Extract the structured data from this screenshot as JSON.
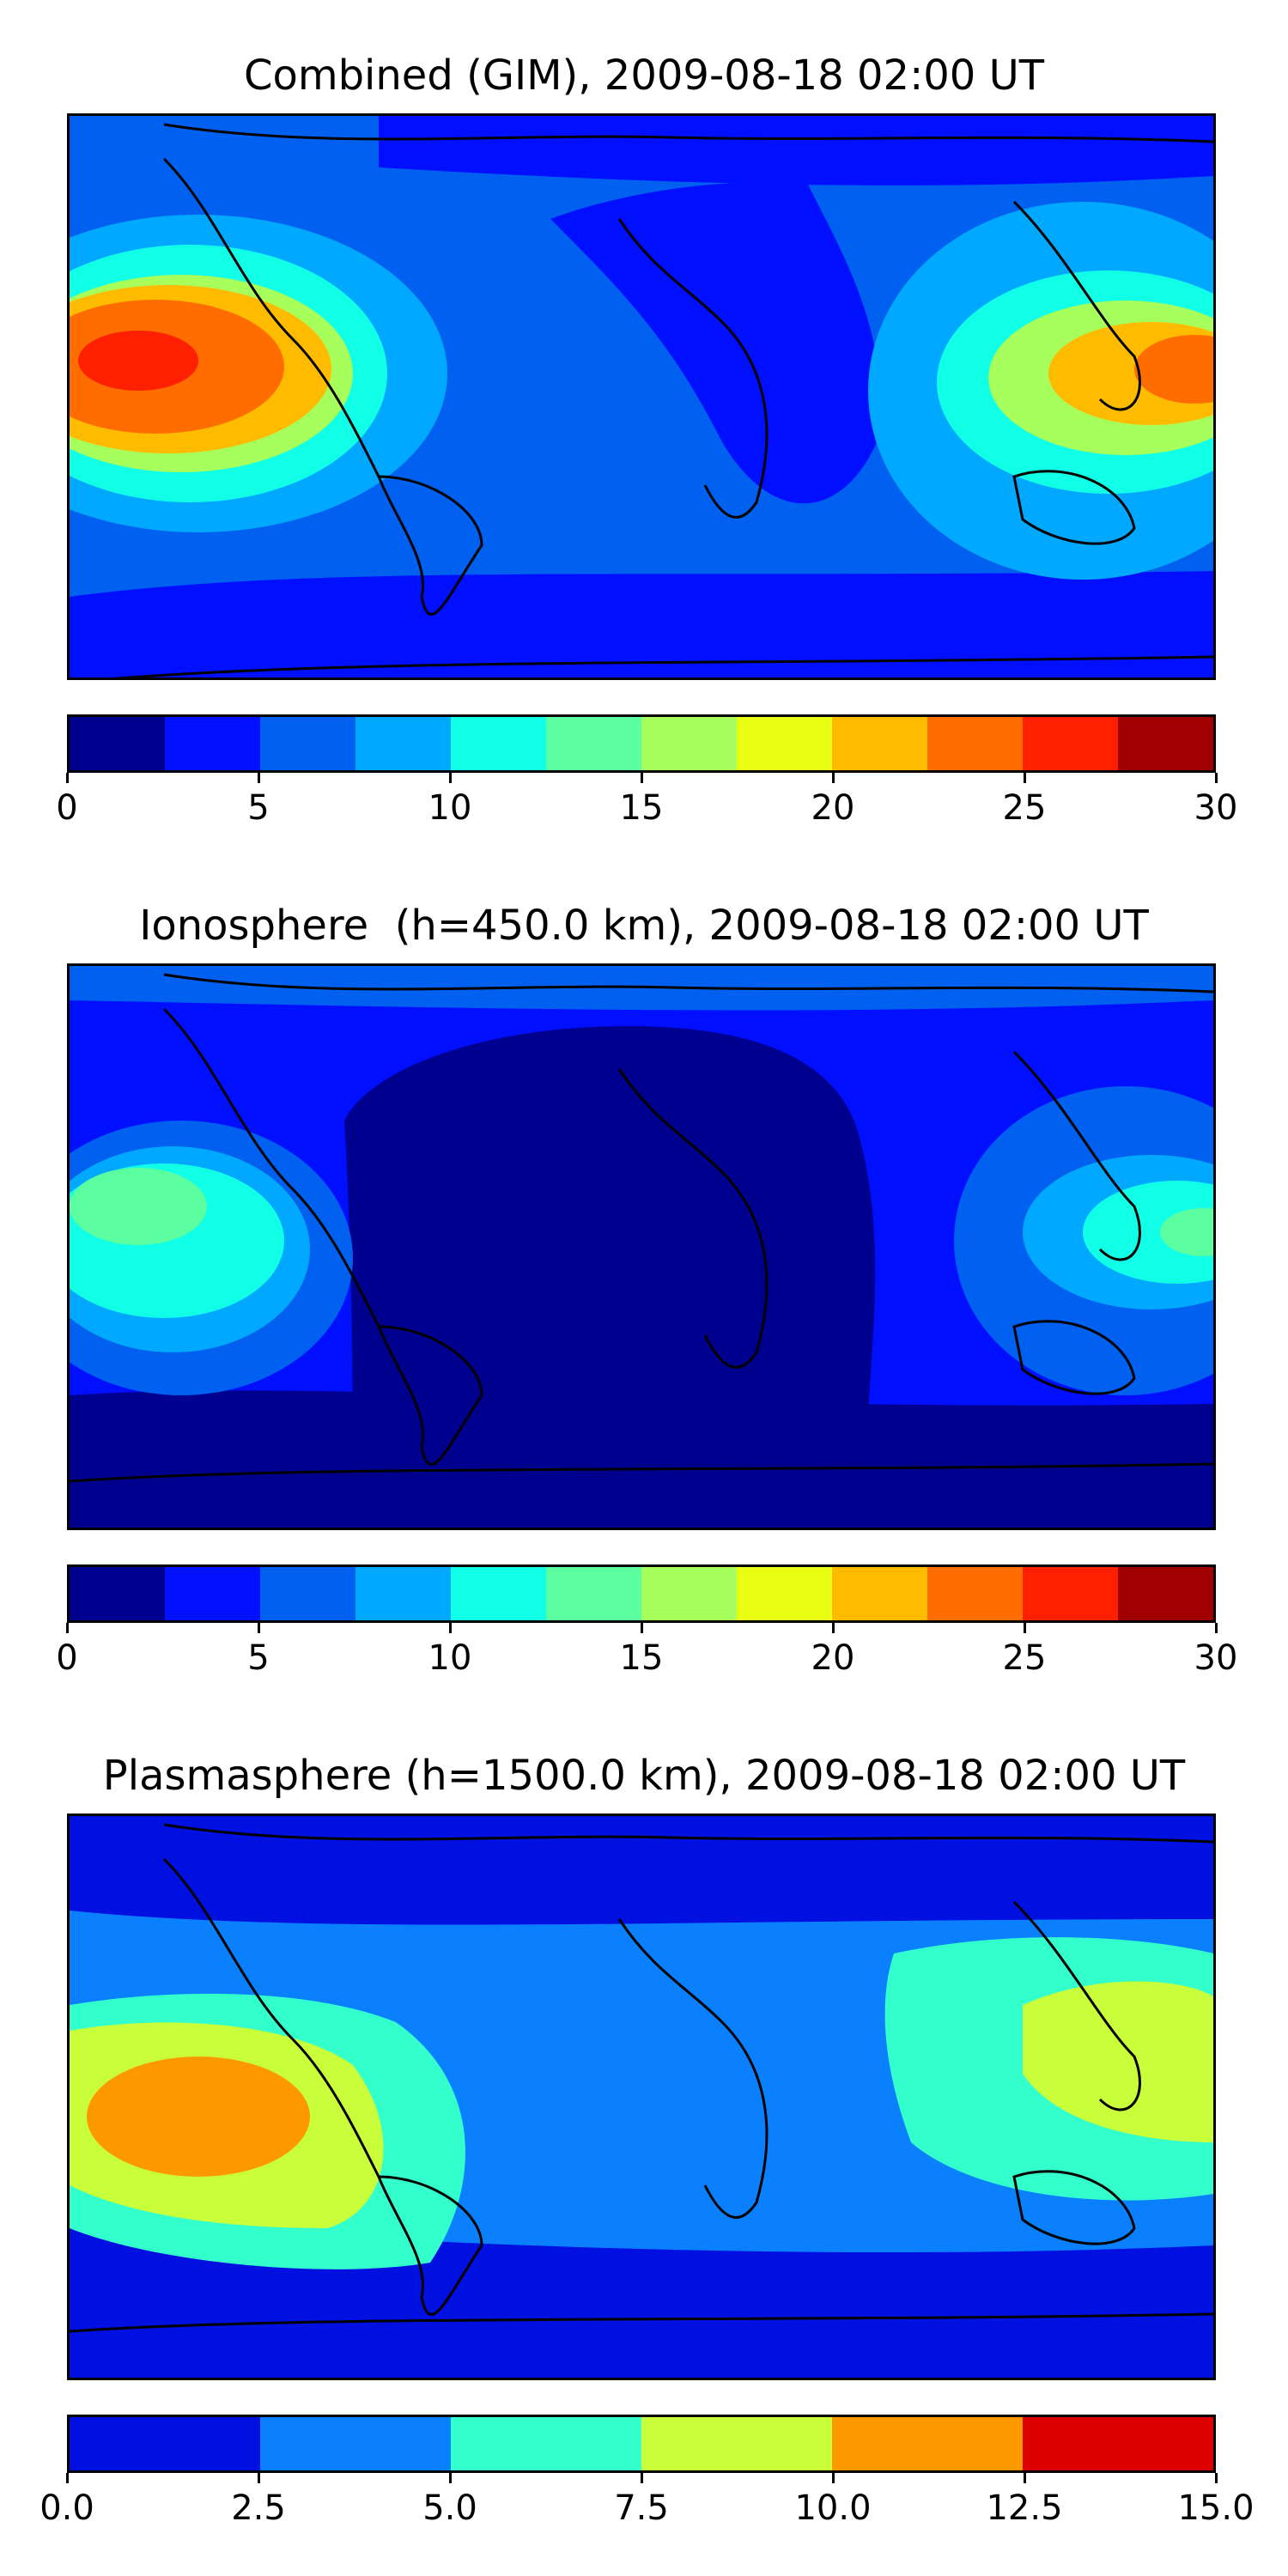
{
  "panels": [
    {
      "title": "Combined (GIM), 2009-08-18 02:00 UT",
      "colorbar": {
        "colors": [
          "#00008f",
          "#0010ff",
          "#0060f0",
          "#00a8ff",
          "#10ffe6",
          "#5cffa0",
          "#a6ff5a",
          "#e8ff14",
          "#ffbb00",
          "#ff6d00",
          "#ff2000",
          "#a00000"
        ],
        "ticks": [
          "0",
          "5",
          "10",
          "15",
          "20",
          "25",
          "30"
        ]
      }
    },
    {
      "title": "Ionosphere  (h=450.0 km), 2009-08-18 02:00 UT",
      "colorbar": {
        "colors": [
          "#00008f",
          "#0010ff",
          "#0060f0",
          "#00a8ff",
          "#10ffe6",
          "#5cffa0",
          "#a6ff5a",
          "#e8ff14",
          "#ffbb00",
          "#ff6d00",
          "#ff2000",
          "#a00000"
        ],
        "ticks": [
          "0",
          "5",
          "10",
          "15",
          "20",
          "25",
          "30"
        ]
      }
    },
    {
      "title": "Plasmasphere (h=1500.0 km), 2009-08-18 02:00 UT",
      "colorbar": {
        "colors": [
          "#0010e0",
          "#0a80ff",
          "#33ffcc",
          "#c8ff3a",
          "#ff9900",
          "#dd0000"
        ],
        "ticks": [
          "0.0",
          "2.5",
          "5.0",
          "7.5",
          "10.0",
          "12.5",
          "15.0"
        ]
      }
    }
  ]
}
